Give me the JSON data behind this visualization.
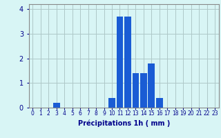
{
  "hours": [
    0,
    1,
    2,
    3,
    4,
    5,
    6,
    7,
    8,
    9,
    10,
    11,
    12,
    13,
    14,
    15,
    16,
    17,
    18,
    19,
    20,
    21,
    22,
    23
  ],
  "values": [
    0,
    0,
    0,
    0.2,
    0,
    0,
    0,
    0,
    0,
    0,
    0.4,
    3.7,
    3.7,
    1.4,
    1.4,
    1.8,
    0.4,
    0,
    0,
    0,
    0,
    0,
    0,
    0
  ],
  "bar_color": "#1a5cd4",
  "background_color": "#d8f5f5",
  "grid_color": "#aec8c8",
  "xlabel": "Précipitations 1h ( mm )",
  "xlabel_color": "#00008b",
  "tick_color": "#00008b",
  "ylim": [
    0,
    4.2
  ],
  "yticks": [
    0,
    1,
    2,
    3,
    4
  ],
  "xlim": [
    -0.5,
    23.5
  ]
}
